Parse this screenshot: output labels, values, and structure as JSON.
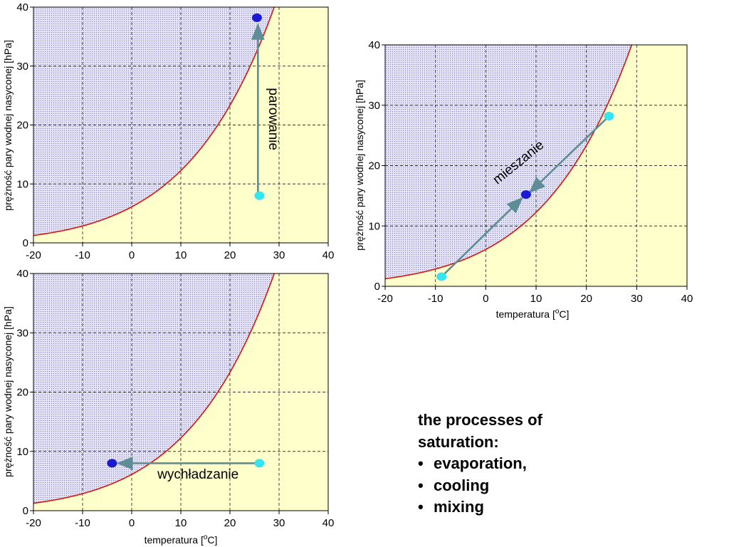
{
  "colors": {
    "humid_fill": "#e2e2f4",
    "humid_stipple": "#7b7bc0",
    "dry_fill": "#ffffcc",
    "curve": "#dd1111",
    "grid": "#333333",
    "arrow": "#5e8d98",
    "point_light": "#33e6f0",
    "point_dark": "#1a1ad6"
  },
  "chart_data": [
    {
      "id": "evaporation",
      "type": "line",
      "title": "",
      "xlabel": "",
      "ylabel": "prężność pary wodnej nasyconej [hPa]",
      "xlim": [
        -20,
        40
      ],
      "ylim": [
        0,
        40
      ],
      "xticks": [
        "-20",
        "-10",
        "0",
        "10",
        "20",
        "30",
        "40"
      ],
      "yticks": [
        "0",
        "10",
        "20",
        "30",
        "40"
      ],
      "grid": true,
      "points": [
        {
          "x": 26,
          "y": 8,
          "color": "light"
        },
        {
          "x": 25.5,
          "y": 38.2,
          "color": "dark"
        }
      ],
      "arrow": {
        "from": [
          25.7,
          8
        ],
        "to": [
          25.7,
          37
        ]
      },
      "annotation": {
        "text": "parowanie",
        "x": 28,
        "y": 21,
        "rotate": 90
      }
    },
    {
      "id": "mixing",
      "type": "line",
      "title": "",
      "xlabel": "temperatura [",
      "xlabel_sup": "o",
      "xlabel_end": "C]",
      "ylabel": "prężność pary wodnej nasyconej [hPa]",
      "xlim": [
        -20,
        40
      ],
      "ylim": [
        0,
        40
      ],
      "xticks": [
        "-20",
        "-10",
        "0",
        "10",
        "20",
        "30",
        "40"
      ],
      "yticks": [
        "0",
        "10",
        "20",
        "30",
        "40"
      ],
      "grid": true,
      "points": [
        {
          "x": -8.8,
          "y": 1.6,
          "color": "light"
        },
        {
          "x": 24.5,
          "y": 28.2,
          "color": "light"
        },
        {
          "x": 8,
          "y": 15.2,
          "color": "dark"
        }
      ],
      "arrows": [
        {
          "from": [
            -8.3,
            2
          ],
          "to": [
            7.2,
            14.6
          ]
        },
        {
          "from": [
            24,
            27.8
          ],
          "to": [
            8.8,
            15.6
          ]
        }
      ],
      "annotation": {
        "text": "mieszanie",
        "x": 7,
        "y": 20,
        "rotate": -39
      }
    },
    {
      "id": "cooling",
      "type": "line",
      "title": "",
      "xlabel": "temperatura [",
      "xlabel_sup": "o",
      "xlabel_end": "C]",
      "ylabel": "prężność pary wodnej nasyconej [hPa]",
      "xlim": [
        -20,
        40
      ],
      "ylim": [
        0,
        40
      ],
      "xticks": [
        "-20",
        "-10",
        "0",
        "10",
        "20",
        "30",
        "40"
      ],
      "yticks": [
        "0",
        "10",
        "20",
        "30",
        "40"
      ],
      "grid": true,
      "points": [
        {
          "x": 26,
          "y": 8,
          "color": "light"
        },
        {
          "x": -4,
          "y": 8,
          "color": "dark"
        }
      ],
      "arrow": {
        "from": [
          25.5,
          8
        ],
        "to": [
          -2.8,
          8
        ]
      },
      "annotation": {
        "text": "wychładzanie",
        "x": 13.5,
        "y": 5.4,
        "rotate": 0
      }
    }
  ],
  "caption": {
    "line1": "the processes of",
    "line2": "saturation:",
    "bullet": "•",
    "items": [
      "evaporation,",
      "cooling",
      "mixing"
    ]
  }
}
